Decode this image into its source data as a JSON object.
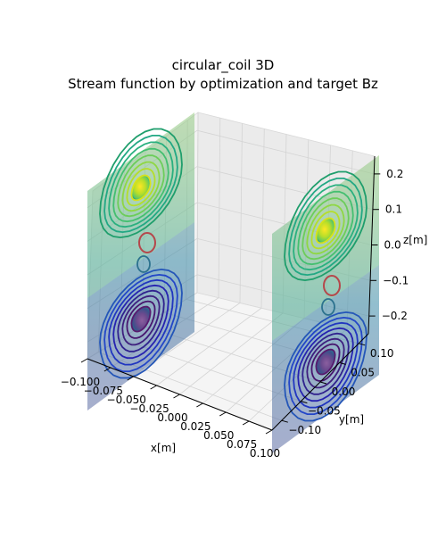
{
  "chart_data": {
    "type": "3d-contour",
    "title": "circular_coil 3D",
    "subtitle": "Stream function by optimization and target Bz",
    "xlabel": "x[m]",
    "ylabel": "y[m]",
    "zlabel": "z[m]",
    "xlim": [
      -0.1,
      0.1
    ],
    "ylim": [
      -0.1,
      0.1
    ],
    "zlim": [
      -0.25,
      0.25
    ],
    "x_ticks": [
      "−0.100",
      "−0.075",
      "−0.050",
      "−0.025",
      "0.000",
      "0.025",
      "0.050",
      "0.075",
      "0.100"
    ],
    "y_ticks": [
      "−0.10",
      "−0.05",
      "0.00",
      "0.05",
      "0.10"
    ],
    "z_ticks": [
      "−0.2",
      "−0.1",
      "0.0",
      "0.1",
      "0.2"
    ],
    "grid": true,
    "colormap": "viridis",
    "surfaces": [
      {
        "position": "x = -0.1",
        "upper_lobe": "max (yellow)",
        "lower_lobe": "min (purple)"
      },
      {
        "position": "x = 0.1",
        "upper_lobe": "max (yellow)",
        "lower_lobe": "min (purple)"
      }
    ],
    "colors": {
      "high": "#fde725",
      "mid": "#21918c",
      "low": "#440154",
      "contour_red": "#b5474b"
    }
  }
}
